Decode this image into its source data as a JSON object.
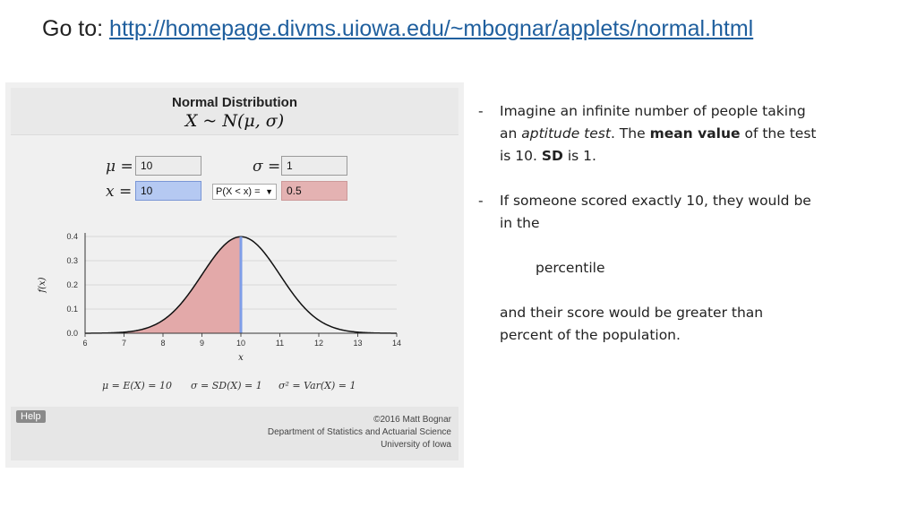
{
  "slide": {
    "goto_prefix": "Go to: ",
    "goto_url": "http://homepage.divms.uiowa.edu/~mbognar/applets/normal.html"
  },
  "applet": {
    "title": "Normal Distribution",
    "formula": "X ~ N(μ, σ)",
    "mu_label": "μ =",
    "mu_value": "10",
    "sigma_label": "σ =",
    "sigma_value": "1",
    "x_label": "x =",
    "x_value": "10",
    "prob_select": "P(X < x) =",
    "prob_value": "0.5",
    "y_axis_label": "f(x)",
    "x_axis_label": "x",
    "x_ticks": [
      "6",
      "7",
      "8",
      "9",
      "10",
      "11",
      "12",
      "13",
      "14"
    ],
    "y_ticks": [
      "0.0",
      "0.1",
      "0.2",
      "0.3",
      "0.4"
    ],
    "formula_mean": "μ = E(X) = 10",
    "formula_sd": "σ = SD(X) = 1",
    "formula_var": "σ² = Var(X) = 1",
    "help_label": "Help",
    "credit_line1": "©2016 Matt Bognar",
    "credit_line2": "Department of Statistics and Actuarial Science",
    "credit_line3": "University of Iowa",
    "colors": {
      "shade": "#e3a9a9",
      "marker": "#7f9ee8",
      "x_field": "#b5c9f2",
      "p_field": "#e4b2b2"
    }
  },
  "chart_data": {
    "type": "area",
    "distribution": "normal",
    "mu": 10,
    "sigma": 1,
    "xlim": [
      6,
      14
    ],
    "ylim": [
      0,
      0.4
    ],
    "shaded_below": 10,
    "x_ticks": [
      6,
      7,
      8,
      9,
      10,
      11,
      12,
      13,
      14
    ],
    "y_ticks": [
      0,
      0.1,
      0.2,
      0.3,
      0.4
    ],
    "ylabel": "f(x)",
    "xlabel": "x"
  },
  "notes": {
    "b1_line1": "Imagine an infinite number of people taking",
    "b1_pre": "an ",
    "b1_italic": "aptitude test",
    "b1_mid": ". The ",
    "b1_bold1": "mean value",
    "b1_post": " of the test",
    "b1_line3_pre": "is 10. ",
    "b1_bold2": "SD",
    "b1_line3_post": " is 1.",
    "b2_line1": "If someone scored exactly 10, they would be",
    "b2_line2": "in the",
    "percentile": "percentile",
    "tail_line1": "and their score would be greater than",
    "tail_line2": "percent of the population.",
    "dash": "-"
  }
}
